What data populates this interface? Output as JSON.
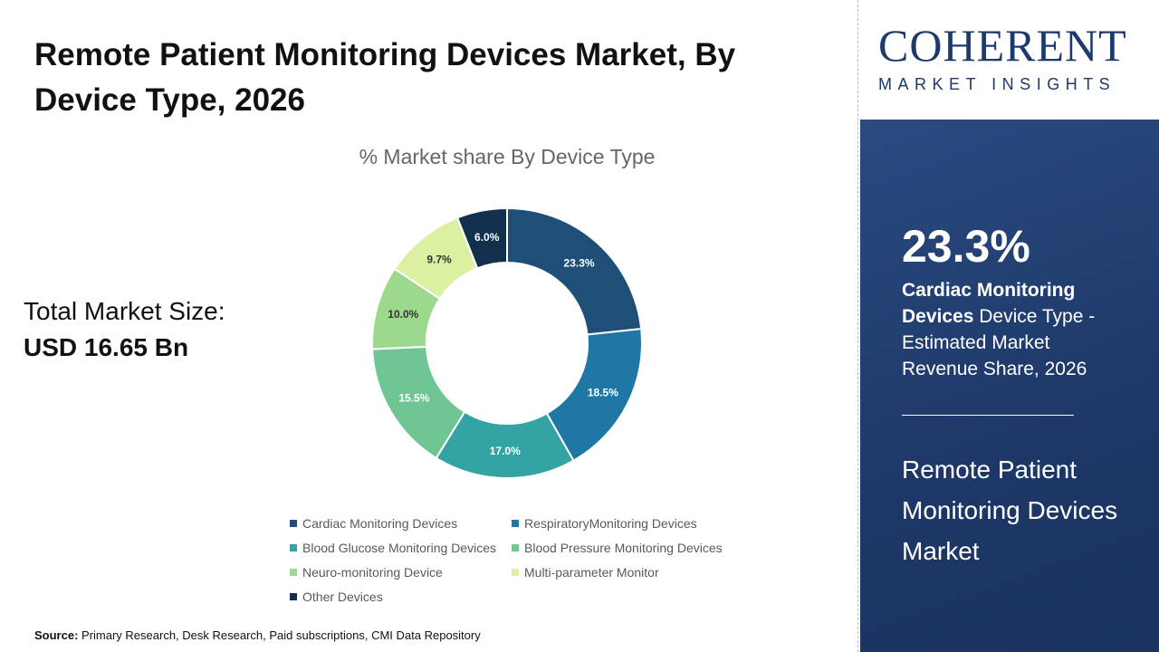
{
  "title": "Remote Patient Monitoring Devices Market,  By Device Type, 2026",
  "total": {
    "label": "Total Market Size:",
    "value": "USD 16.65 Bn"
  },
  "source": {
    "label": "Source:",
    "text": " Primary Research, Desk Research, Paid subscriptions, CMI Data Repository"
  },
  "logo": {
    "main": "COHERENT",
    "sub": "MARKET INSIGHTS"
  },
  "panel": {
    "percent": "23.3%",
    "highlight": "Cardiac Monitoring Devices",
    "desc": " Device Type - Estimated Market Revenue Share, 2026",
    "market": "Remote Patient Monitoring Devices Market"
  },
  "chart_data": {
    "type": "pie",
    "donut": true,
    "title": "% Market share  By Device Type",
    "legend_position": "bottom",
    "categories": [
      "Cardiac Monitoring Devices",
      "RespiratoryMonitoring Devices",
      "Blood Glucose Monitoring Devices",
      "Blood Pressure Monitoring Devices",
      "Neuro-monitoring Device",
      "Multi-parameter Monitor",
      "Other Devices"
    ],
    "values": [
      23.3,
      18.5,
      17.0,
      15.5,
      10.0,
      9.7,
      6.0
    ],
    "labels": [
      "23.3%",
      "18.5%",
      "17.0%",
      "15.5%",
      "10.0%",
      "9.7%",
      "6.0%"
    ],
    "colors": [
      "#1f4e79",
      "#1f77a6",
      "#33a3a3",
      "#70c595",
      "#9dd98c",
      "#dcf0a2",
      "#10304e"
    ]
  }
}
